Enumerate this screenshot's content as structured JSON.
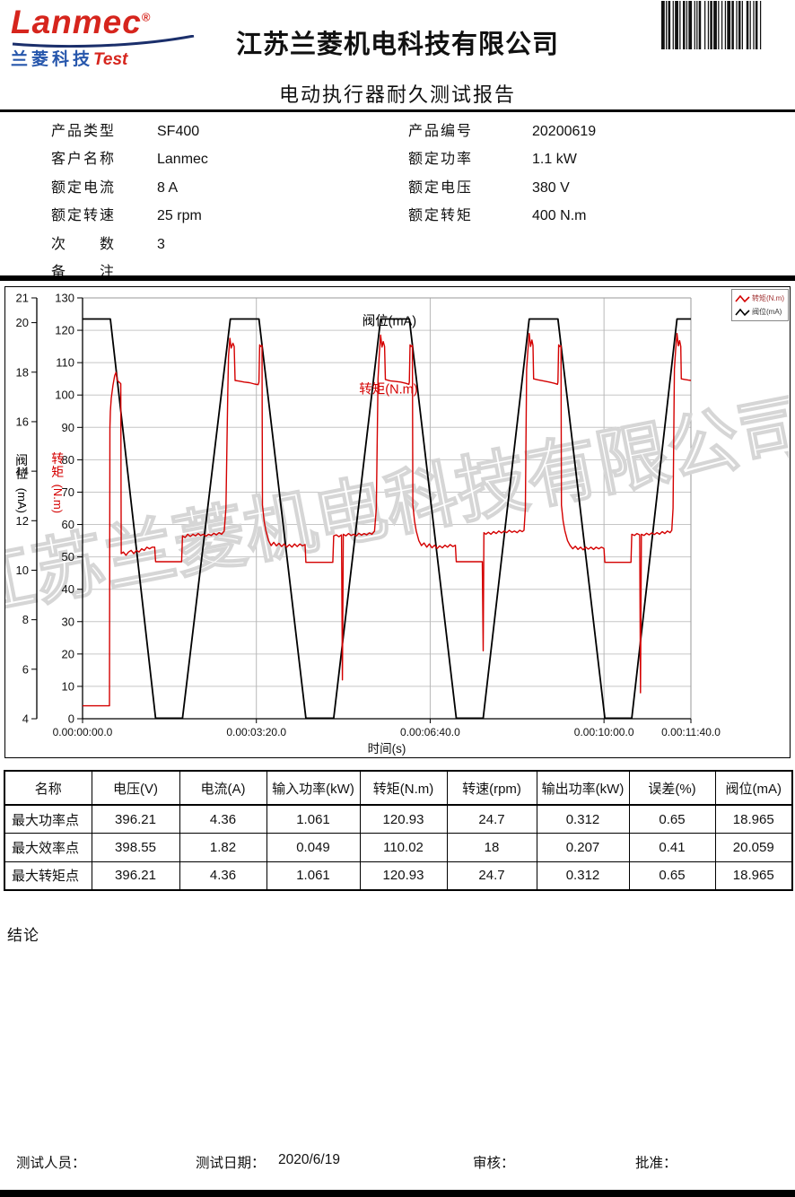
{
  "header": {
    "logo_brand": "Lanmec",
    "logo_reg": "®",
    "logo_sub_cn": "兰菱科技",
    "logo_sub_en": "Test",
    "company": "江苏兰菱机电科技有限公司",
    "report_title": "电动执行器耐久测试报告"
  },
  "info": {
    "left": [
      {
        "label": "产品类型",
        "value": "SF400"
      },
      {
        "label": "客户名称",
        "value": "Lanmec"
      },
      {
        "label": "额定电流",
        "value": "8 A"
      },
      {
        "label": "额定转速",
        "value": "25 rpm"
      },
      {
        "label": "次数",
        "value": "3"
      },
      {
        "label": "备注",
        "value": ""
      }
    ],
    "right": [
      {
        "label": "产品编号",
        "value": "20200619"
      },
      {
        "label": "额定功率",
        "value": "1.1 kW"
      },
      {
        "label": "额定电压",
        "value": "380 V"
      },
      {
        "label": "额定转矩",
        "value": "400 N.m"
      }
    ]
  },
  "chart_data": {
    "type": "line",
    "xlabel": "时间(s)",
    "x_range_seconds": [
      0,
      700
    ],
    "x_ticks": [
      {
        "t": 0,
        "label": "0.00:00:00.0"
      },
      {
        "t": 200,
        "label": "0.00:03:20.0"
      },
      {
        "t": 400,
        "label": "0.00:06:40.0"
      },
      {
        "t": 600,
        "label": "0.00:10:00.0"
      },
      {
        "t": 700,
        "label": "0.00:11:40.0"
      }
    ],
    "grid_vertical_t": [
      200,
      400,
      600
    ],
    "axis_outer": {
      "label": "阀位(mA)",
      "unit_chars": "阀位",
      "unit_suffix": "(mA)",
      "min": 4,
      "max": 21,
      "ticks": [
        4,
        6,
        8,
        10,
        12,
        14,
        16,
        18,
        20,
        21
      ],
      "color": "#000000"
    },
    "axis_inner": {
      "label": "转矩(N.m)",
      "unit_chars": "转矩",
      "unit_suffix": "(N.m)",
      "min": 0,
      "max": 130,
      "tick_step": 10,
      "color": "#cc0000"
    },
    "legend": [
      {
        "name": "转矩(N.m)",
        "color": "#d40000",
        "text_color": "#a03030"
      },
      {
        "name": "阀位(mA)",
        "color": "#000000",
        "text_color": "#333333"
      }
    ],
    "annotations": [
      {
        "text": "阀位(mA)",
        "color": "#000000",
        "t": 353,
        "value_nm": 121.5
      },
      {
        "text": "转矩(N.m)",
        "color": "#d40000",
        "t": 352,
        "value_nm": 100.5
      }
    ],
    "watermark": "江苏兰菱机电科技有限公司",
    "series": [
      {
        "name": "阀位(mA)",
        "axis": "mA",
        "color": "#000000",
        "width": 1.8,
        "points": [
          [
            0,
            20.15
          ],
          [
            32,
            20.15
          ],
          [
            84,
            4.02
          ],
          [
            115,
            4.02
          ],
          [
            170,
            20.15
          ],
          [
            203,
            20.15
          ],
          [
            257,
            4.02
          ],
          [
            289,
            4.02
          ],
          [
            343,
            20.15
          ],
          [
            376,
            20.15
          ],
          [
            430,
            4.02
          ],
          [
            461,
            4.02
          ],
          [
            514,
            20.15
          ],
          [
            547,
            20.15
          ],
          [
            601,
            4.02
          ],
          [
            632,
            4.02
          ],
          [
            684,
            20.15
          ],
          [
            700,
            20.15
          ]
        ]
      },
      {
        "name": "转矩(N.m)",
        "axis": "Nm",
        "color": "#d40000",
        "width": 1.4,
        "points": [
          [
            0,
            4
          ],
          [
            31,
            4
          ],
          [
            31.5,
            90
          ],
          [
            32,
            95
          ],
          [
            33,
            99
          ],
          [
            35,
            103
          ],
          [
            37,
            106
          ],
          [
            38.5,
            107
          ],
          [
            40,
            104.5
          ],
          [
            42,
            104
          ],
          [
            44,
            103.5
          ],
          [
            44.5,
            51
          ],
          [
            47,
            51.5
          ],
          [
            50,
            50.5
          ],
          [
            53,
            51.5
          ],
          [
            56,
            52
          ],
          [
            59,
            51
          ],
          [
            62,
            52
          ],
          [
            65,
            51.5
          ],
          [
            68,
            52.5
          ],
          [
            71,
            52
          ],
          [
            74,
            53
          ],
          [
            77,
            52.5
          ],
          [
            80,
            53
          ],
          [
            83,
            53
          ],
          [
            84,
            48.5
          ],
          [
            114,
            48.5
          ],
          [
            115,
            56.5
          ],
          [
            118,
            56
          ],
          [
            121,
            57
          ],
          [
            124,
            56.3
          ],
          [
            127,
            57
          ],
          [
            130,
            56.5
          ],
          [
            133,
            57.2
          ],
          [
            136,
            56.6
          ],
          [
            139,
            57
          ],
          [
            142,
            56.4
          ],
          [
            145,
            57
          ],
          [
            148,
            56.6
          ],
          [
            151,
            57.3
          ],
          [
            154,
            56.8
          ],
          [
            157,
            57.5
          ],
          [
            160,
            57
          ],
          [
            163,
            58
          ],
          [
            165,
            65
          ],
          [
            167,
            100
          ],
          [
            168,
            112
          ],
          [
            169.5,
            117.5
          ],
          [
            171,
            114.5
          ],
          [
            173,
            116
          ],
          [
            174.5,
            115
          ],
          [
            175.5,
            104.5
          ],
          [
            180,
            104.3
          ],
          [
            186,
            104
          ],
          [
            192,
            103.8
          ],
          [
            198,
            103.4
          ],
          [
            202,
            103.2
          ],
          [
            203,
            104
          ],
          [
            203.8,
            115.5
          ],
          [
            205,
            115
          ],
          [
            206.5,
            115.3
          ],
          [
            207,
            66
          ],
          [
            209,
            61
          ],
          [
            211,
            58
          ],
          [
            214,
            55
          ],
          [
            217,
            53.5
          ],
          [
            220,
            54.5
          ],
          [
            223,
            53.4
          ],
          [
            226,
            54.2
          ],
          [
            229,
            53.2
          ],
          [
            232,
            54
          ],
          [
            235,
            53
          ],
          [
            238,
            53.8
          ],
          [
            241,
            53
          ],
          [
            244,
            54
          ],
          [
            247,
            53.2
          ],
          [
            250,
            54
          ],
          [
            253,
            53.4
          ],
          [
            256,
            53.8
          ],
          [
            257,
            48.3
          ],
          [
            288,
            48.3
          ],
          [
            289,
            56.5
          ],
          [
            292,
            56.8
          ],
          [
            295,
            56.2
          ],
          [
            298,
            56.8
          ],
          [
            299,
            12
          ],
          [
            300,
            57
          ],
          [
            303,
            56.5
          ],
          [
            306,
            57.2
          ],
          [
            309,
            56.6
          ],
          [
            312,
            57
          ],
          [
            315,
            56.5
          ],
          [
            318,
            57.3
          ],
          [
            321,
            56.7
          ],
          [
            324,
            57.2
          ],
          [
            327,
            56.8
          ],
          [
            330,
            57.4
          ],
          [
            333,
            57
          ],
          [
            336,
            58
          ],
          [
            338,
            65
          ],
          [
            340,
            105
          ],
          [
            341.5,
            113
          ],
          [
            343,
            118.5
          ],
          [
            344.5,
            114.8
          ],
          [
            346,
            116.5
          ],
          [
            347.5,
            115
          ],
          [
            348.5,
            104.8
          ],
          [
            354,
            104.4
          ],
          [
            360,
            104.2
          ],
          [
            366,
            104
          ],
          [
            372,
            103.6
          ],
          [
            375.5,
            103.3
          ],
          [
            376,
            104
          ],
          [
            376.8,
            115.5
          ],
          [
            378,
            115
          ],
          [
            379.5,
            115.3
          ],
          [
            380,
            66
          ],
          [
            382,
            61
          ],
          [
            384,
            58
          ],
          [
            387,
            55
          ],
          [
            390,
            53.5
          ],
          [
            393,
            54.3
          ],
          [
            396,
            53
          ],
          [
            399,
            54
          ],
          [
            402,
            52.8
          ],
          [
            405,
            53.6
          ],
          [
            408,
            52.6
          ],
          [
            411,
            53.4
          ],
          [
            414,
            52.8
          ],
          [
            417,
            53.6
          ],
          [
            420,
            53
          ],
          [
            423,
            53.8
          ],
          [
            426,
            53.2
          ],
          [
            429,
            53.6
          ],
          [
            430,
            48.5
          ],
          [
            460,
            48.5
          ],
          [
            461,
            21
          ],
          [
            461.8,
            57.5
          ],
          [
            464,
            57
          ],
          [
            467,
            57.6
          ],
          [
            470,
            57
          ],
          [
            473,
            57.8
          ],
          [
            476,
            57.2
          ],
          [
            479,
            58
          ],
          [
            482,
            57.4
          ],
          [
            485,
            58
          ],
          [
            488,
            57.5
          ],
          [
            491,
            58.2
          ],
          [
            494,
            57.6
          ],
          [
            497,
            58
          ],
          [
            500,
            57.5
          ],
          [
            503,
            58.2
          ],
          [
            506,
            57.8
          ],
          [
            508,
            58.2
          ],
          [
            509.5,
            65
          ],
          [
            511,
            108
          ],
          [
            512.5,
            114
          ],
          [
            514,
            119
          ],
          [
            515.5,
            115
          ],
          [
            517,
            117
          ],
          [
            518.3,
            115.3
          ],
          [
            519,
            105
          ],
          [
            524,
            104.7
          ],
          [
            530,
            104.4
          ],
          [
            537,
            104
          ],
          [
            543,
            103.6
          ],
          [
            546.5,
            103.3
          ],
          [
            547,
            104
          ],
          [
            547.8,
            115.5
          ],
          [
            549,
            115
          ],
          [
            550.5,
            115.2
          ],
          [
            551,
            66
          ],
          [
            553,
            61
          ],
          [
            555,
            58
          ],
          [
            558,
            55
          ],
          [
            561,
            53.5
          ],
          [
            564,
            52.5
          ],
          [
            567,
            53.3
          ],
          [
            570,
            52.3
          ],
          [
            573,
            53
          ],
          [
            576,
            52.2
          ],
          [
            579,
            53
          ],
          [
            582,
            52.4
          ],
          [
            585,
            53
          ],
          [
            588,
            52.3
          ],
          [
            591,
            53
          ],
          [
            594,
            52.5
          ],
          [
            597,
            53
          ],
          [
            600,
            52.6
          ],
          [
            601,
            48.3
          ],
          [
            631,
            48.3
          ],
          [
            632,
            57
          ],
          [
            635,
            56.6
          ],
          [
            638,
            57.2
          ],
          [
            641,
            56.8
          ],
          [
            642,
            8
          ],
          [
            643,
            57
          ],
          [
            646,
            56.6
          ],
          [
            649,
            57.3
          ],
          [
            652,
            56.8
          ],
          [
            655,
            57.4
          ],
          [
            658,
            56.9
          ],
          [
            661,
            57.5
          ],
          [
            664,
            57
          ],
          [
            667,
            57.8
          ],
          [
            670,
            57.2
          ],
          [
            673,
            58
          ],
          [
            676,
            57.5
          ],
          [
            678,
            58.2
          ],
          [
            679.5,
            65
          ],
          [
            681,
            108
          ],
          [
            682.5,
            114
          ],
          [
            684,
            119
          ],
          [
            685.5,
            115.2
          ],
          [
            687,
            116.8
          ],
          [
            688.3,
            115
          ],
          [
            689,
            105
          ],
          [
            693,
            104.8
          ],
          [
            697,
            104.6
          ],
          [
            700,
            104.5
          ]
        ]
      }
    ]
  },
  "results_table": {
    "headers": [
      "名称",
      "电压(V)",
      "电流(A)",
      "输入功率(kW)",
      "转矩(N.m)",
      "转速(rpm)",
      "输出功率(kW)",
      "误差(%)",
      "阀位(mA)"
    ],
    "rows": [
      [
        "最大功率点",
        "396.21",
        "4.36",
        "1.061",
        "120.93",
        "24.7",
        "0.312",
        "0.65",
        "18.965"
      ],
      [
        "最大效率点",
        "398.55",
        "1.82",
        "0.049",
        "110.02",
        "18",
        "0.207",
        "0.41",
        "20.059"
      ],
      [
        "最大转矩点",
        "396.21",
        "4.36",
        "1.061",
        "120.93",
        "24.7",
        "0.312",
        "0.65",
        "18.965"
      ]
    ]
  },
  "conclusion_label": "结论",
  "footer": {
    "tester_label": "测试人员：",
    "date_label": "测试日期：",
    "date_value": "2020/6/19",
    "reviewer_label": "审核：",
    "approver_label": "批准："
  }
}
